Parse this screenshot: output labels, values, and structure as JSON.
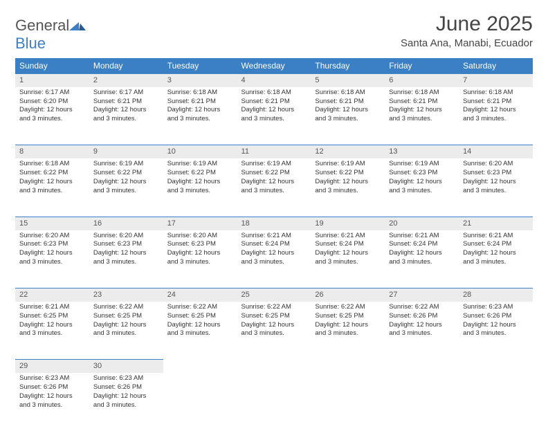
{
  "brand": {
    "name1": "General",
    "name2": "Blue"
  },
  "title": "June 2025",
  "location": "Santa Ana, Manabi, Ecuador",
  "colors": {
    "accent": "#3b7fc4",
    "header_bg": "#3b7fc4",
    "daynum_bg": "#ececec"
  },
  "day_headers": [
    "Sunday",
    "Monday",
    "Tuesday",
    "Wednesday",
    "Thursday",
    "Friday",
    "Saturday"
  ],
  "daylight_text": "Daylight: 12 hours and 3 minutes.",
  "weeks": [
    [
      {
        "n": "1",
        "sr": "6:17 AM",
        "ss": "6:20 PM"
      },
      {
        "n": "2",
        "sr": "6:17 AM",
        "ss": "6:21 PM"
      },
      {
        "n": "3",
        "sr": "6:18 AM",
        "ss": "6:21 PM"
      },
      {
        "n": "4",
        "sr": "6:18 AM",
        "ss": "6:21 PM"
      },
      {
        "n": "5",
        "sr": "6:18 AM",
        "ss": "6:21 PM"
      },
      {
        "n": "6",
        "sr": "6:18 AM",
        "ss": "6:21 PM"
      },
      {
        "n": "7",
        "sr": "6:18 AM",
        "ss": "6:21 PM"
      }
    ],
    [
      {
        "n": "8",
        "sr": "6:18 AM",
        "ss": "6:22 PM"
      },
      {
        "n": "9",
        "sr": "6:19 AM",
        "ss": "6:22 PM"
      },
      {
        "n": "10",
        "sr": "6:19 AM",
        "ss": "6:22 PM"
      },
      {
        "n": "11",
        "sr": "6:19 AM",
        "ss": "6:22 PM"
      },
      {
        "n": "12",
        "sr": "6:19 AM",
        "ss": "6:22 PM"
      },
      {
        "n": "13",
        "sr": "6:19 AM",
        "ss": "6:23 PM"
      },
      {
        "n": "14",
        "sr": "6:20 AM",
        "ss": "6:23 PM"
      }
    ],
    [
      {
        "n": "15",
        "sr": "6:20 AM",
        "ss": "6:23 PM"
      },
      {
        "n": "16",
        "sr": "6:20 AM",
        "ss": "6:23 PM"
      },
      {
        "n": "17",
        "sr": "6:20 AM",
        "ss": "6:23 PM"
      },
      {
        "n": "18",
        "sr": "6:21 AM",
        "ss": "6:24 PM"
      },
      {
        "n": "19",
        "sr": "6:21 AM",
        "ss": "6:24 PM"
      },
      {
        "n": "20",
        "sr": "6:21 AM",
        "ss": "6:24 PM"
      },
      {
        "n": "21",
        "sr": "6:21 AM",
        "ss": "6:24 PM"
      }
    ],
    [
      {
        "n": "22",
        "sr": "6:21 AM",
        "ss": "6:25 PM"
      },
      {
        "n": "23",
        "sr": "6:22 AM",
        "ss": "6:25 PM"
      },
      {
        "n": "24",
        "sr": "6:22 AM",
        "ss": "6:25 PM"
      },
      {
        "n": "25",
        "sr": "6:22 AM",
        "ss": "6:25 PM"
      },
      {
        "n": "26",
        "sr": "6:22 AM",
        "ss": "6:25 PM"
      },
      {
        "n": "27",
        "sr": "6:22 AM",
        "ss": "6:26 PM"
      },
      {
        "n": "28",
        "sr": "6:23 AM",
        "ss": "6:26 PM"
      }
    ],
    [
      {
        "n": "29",
        "sr": "6:23 AM",
        "ss": "6:26 PM"
      },
      {
        "n": "30",
        "sr": "6:23 AM",
        "ss": "6:26 PM"
      },
      null,
      null,
      null,
      null,
      null
    ]
  ],
  "labels": {
    "sunrise": "Sunrise:",
    "sunset": "Sunset:"
  }
}
